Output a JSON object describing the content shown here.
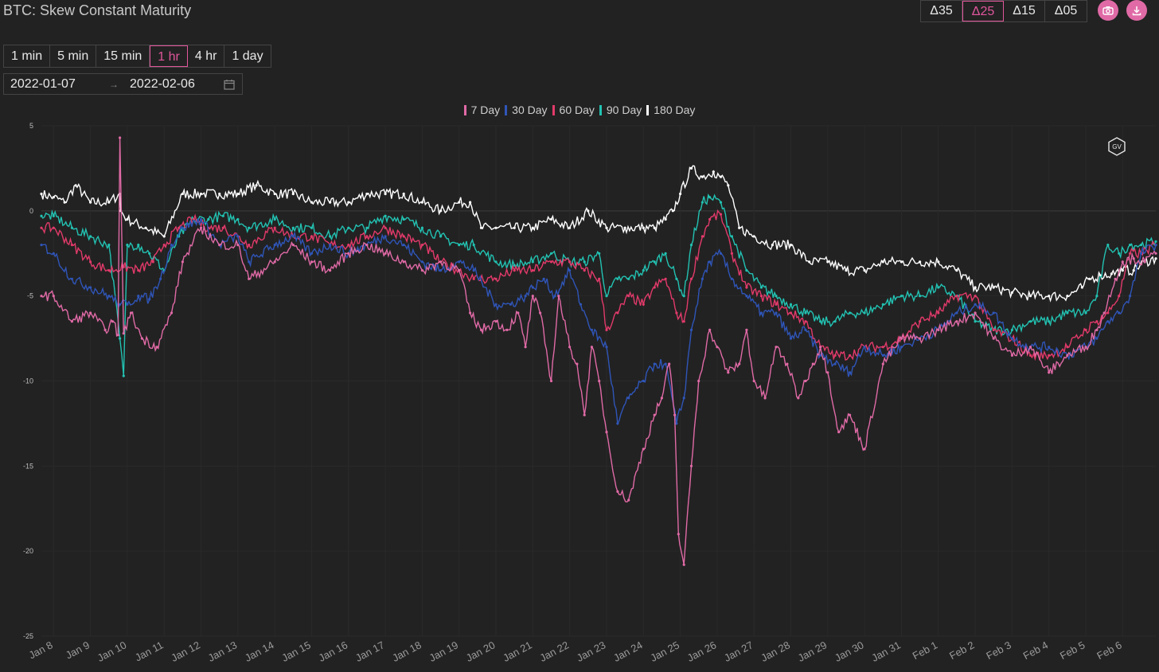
{
  "title": "BTC: Skew Constant Maturity",
  "delta_buttons": [
    "Δ35",
    "Δ25",
    "Δ15",
    "Δ05"
  ],
  "delta_active": "Δ25",
  "interval_buttons": [
    "1 min",
    "5 min",
    "15 min",
    "1 hr",
    "4 hr",
    "1 day"
  ],
  "interval_active": "1 hr",
  "date_range": {
    "start": "2022-01-07",
    "separator": "→",
    "end": "2022-02-06"
  },
  "icons": {
    "camera": "camera-icon",
    "download": "download-icon",
    "calendar": "calendar-icon",
    "logo": "gv-logo-icon"
  },
  "logo_text": "GV",
  "chart_data": {
    "type": "line",
    "title": "",
    "xlabel": "",
    "ylabel": "",
    "ylim": [
      -25,
      5
    ],
    "y_ticks": [
      5,
      0,
      -5,
      -10,
      -15,
      -20,
      -25
    ],
    "x_tick_labels": [
      "Jan 8",
      "Jan 9",
      "Jan 10",
      "Jan 11",
      "Jan 12",
      "Jan 13",
      "Jan 14",
      "Jan 15",
      "Jan 16",
      "Jan 17",
      "Jan 18",
      "Jan 19",
      "Jan 20",
      "Jan 21",
      "Jan 22",
      "Jan 23",
      "Jan 24",
      "Jan 25",
      "Jan 26",
      "Jan 27",
      "Jan 28",
      "Jan 29",
      "Jan 30",
      "Jan 31",
      "Feb 1",
      "Feb 2",
      "Feb 3",
      "Feb 4",
      "Feb 5",
      "Feb 6"
    ],
    "x_tick_values": [
      1,
      2,
      3,
      4,
      5,
      6,
      7,
      8,
      9,
      10,
      11,
      12,
      13,
      14,
      15,
      16,
      17,
      18,
      19,
      20,
      21,
      22,
      23,
      24,
      25,
      26,
      27,
      28,
      29,
      30
    ],
    "xlim": [
      0.67,
      30.9
    ],
    "legend_position": "top-center",
    "grid": true,
    "series": [
      {
        "name": "7 Day",
        "color": "#e06aa6",
        "x": [
          0.67,
          1.0,
          1.5,
          2.0,
          2.4,
          2.6,
          2.75,
          2.8,
          2.9,
          3.1,
          3.4,
          3.8,
          4.2,
          4.5,
          5.0,
          5.5,
          6.0,
          6.3,
          7.0,
          7.5,
          8.0,
          8.5,
          9.0,
          9.5,
          10.0,
          10.5,
          11.0,
          11.5,
          12.0,
          12.3,
          12.6,
          13.0,
          13.3,
          13.6,
          13.8,
          14.0,
          14.2,
          14.5,
          14.7,
          15.0,
          15.2,
          15.4,
          15.6,
          15.8,
          16.0,
          16.3,
          16.6,
          17.0,
          17.3,
          17.5,
          17.7,
          17.85,
          17.95,
          18.1,
          18.3,
          18.5,
          18.8,
          19.0,
          19.3,
          19.6,
          19.8,
          20.0,
          20.3,
          20.6,
          20.9,
          21.2,
          21.4,
          21.6,
          21.8,
          22.0,
          22.3,
          22.6,
          23.0,
          23.5,
          24.0,
          24.5,
          25.0,
          25.5,
          26.0,
          26.5,
          27.0,
          27.5,
          28.0,
          28.5,
          29.0,
          29.3,
          29.5,
          29.8,
          30.0,
          30.3,
          30.6,
          30.9
        ],
        "y": [
          -5,
          -5,
          -6.5,
          -6,
          -7,
          -6.5,
          -7.3,
          4.3,
          -7.2,
          -6,
          -7.5,
          -8,
          -6,
          -3,
          -1,
          -2,
          -2,
          -4,
          -3,
          -2,
          -3,
          -3.5,
          -2.5,
          -2,
          -2.5,
          -3,
          -3.5,
          -3,
          -3.5,
          -6,
          -7,
          -6.5,
          -7,
          -6,
          -8,
          -5,
          -6,
          -10,
          -5,
          -8,
          -9,
          -12,
          -8,
          -10,
          -13,
          -16.5,
          -17,
          -14,
          -12,
          -11,
          -9,
          -12,
          -19,
          -20.8,
          -15,
          -10,
          -7,
          -8,
          -9.5,
          -9,
          -7,
          -10,
          -11,
          -8,
          -9,
          -11,
          -10,
          -9,
          -8,
          -9.5,
          -13,
          -12,
          -14,
          -9,
          -7.5,
          -7.5,
          -7,
          -6.5,
          -6,
          -7.5,
          -8.5,
          -8,
          -9.5,
          -8.5,
          -8,
          -7,
          -6,
          -4,
          -3,
          -2.8,
          -3,
          -2.5
        ]
      },
      {
        "name": "30 Day",
        "color": "#2f55b8",
        "x": [
          0.67,
          1.0,
          1.5,
          2.0,
          2.5,
          2.8,
          3.0,
          3.3,
          3.6,
          3.9,
          4.2,
          4.5,
          5.0,
          5.5,
          6.0,
          6.3,
          7.0,
          7.5,
          8.0,
          8.5,
          9.0,
          9.5,
          10.0,
          10.5,
          11.0,
          11.5,
          12.0,
          12.4,
          13.0,
          13.4,
          13.8,
          14.0,
          14.3,
          14.6,
          15.0,
          15.3,
          15.6,
          16.0,
          16.3,
          16.6,
          17.0,
          17.3,
          17.6,
          17.9,
          18.1,
          18.3,
          18.6,
          18.8,
          19.1,
          19.4,
          19.8,
          20.2,
          20.6,
          21.0,
          21.4,
          21.8,
          22.2,
          22.6,
          23.0,
          23.5,
          24.0,
          24.5,
          25.0,
          25.5,
          26.0,
          26.5,
          27.0,
          27.5,
          28.0,
          28.5,
          29.0,
          29.3,
          29.6,
          29.9,
          30.2,
          30.5,
          30.9
        ],
        "y": [
          -2,
          -2.5,
          -4,
          -4.5,
          -5,
          -5.5,
          -5.5,
          -5,
          -5.2,
          -4,
          -2,
          -1,
          -0.5,
          -2,
          -1.5,
          -3,
          -2,
          -1.5,
          -2.5,
          -2,
          -2.5,
          -2,
          -1.5,
          -2,
          -3,
          -3.5,
          -3,
          -3.5,
          -5.5,
          -5.5,
          -5,
          -4.5,
          -4,
          -5,
          -3.5,
          -5.5,
          -7,
          -8,
          -12.5,
          -11,
          -10,
          -9,
          -9,
          -12.5,
          -11,
          -7,
          -4,
          -3,
          -2.5,
          -4,
          -5,
          -6,
          -6,
          -7.5,
          -7,
          -8.5,
          -9,
          -9.5,
          -8,
          -8.5,
          -8,
          -7.5,
          -7,
          -6,
          -5.5,
          -6,
          -7.5,
          -8,
          -8,
          -8.5,
          -8,
          -7.5,
          -6.5,
          -6,
          -5,
          -2.5,
          -2
        ]
      },
      {
        "name": "60 Day",
        "color": "#e23a6a",
        "x": [
          0.67,
          1.0,
          1.5,
          2.0,
          2.5,
          2.9,
          3.3,
          3.7,
          4.0,
          4.4,
          4.8,
          5.2,
          5.6,
          6.0,
          6.3,
          7.0,
          7.5,
          8.0,
          8.5,
          9.0,
          9.5,
          10.0,
          10.5,
          11.0,
          11.5,
          12.0,
          12.4,
          13.0,
          13.5,
          14.0,
          14.5,
          15.0,
          15.4,
          15.8,
          16.0,
          16.3,
          16.6,
          17.0,
          17.3,
          17.6,
          17.9,
          18.1,
          18.3,
          18.6,
          18.8,
          19.1,
          19.4,
          19.8,
          20.2,
          20.6,
          21.0,
          21.4,
          21.8,
          22.2,
          22.6,
          23.0,
          23.5,
          24.0,
          24.5,
          25.0,
          25.5,
          26.0,
          26.5,
          27.0,
          27.5,
          28.0,
          28.5,
          29.0,
          29.3,
          29.6,
          29.9,
          30.2,
          30.5,
          30.9
        ],
        "y": [
          -1,
          -1,
          -2,
          -3,
          -3.5,
          -3.3,
          -3.5,
          -3,
          -2,
          -1,
          -0.5,
          -1,
          -1,
          -1.5,
          -2,
          -1,
          -1.5,
          -1.5,
          -2,
          -2,
          -1.5,
          -1,
          -1.5,
          -2,
          -3,
          -3.5,
          -4,
          -4,
          -3.5,
          -3.5,
          -3,
          -3,
          -3.5,
          -4,
          -7,
          -6,
          -5,
          -5.5,
          -4.5,
          -4,
          -6,
          -6.5,
          -4,
          -1.5,
          -0.5,
          -0.2,
          -2.5,
          -4.5,
          -5,
          -5.5,
          -6,
          -6.5,
          -8,
          -8.5,
          -8.5,
          -8,
          -8,
          -7.5,
          -6.5,
          -6,
          -5,
          -5,
          -7,
          -7.5,
          -8.5,
          -8.5,
          -8,
          -7,
          -6.5,
          -6,
          -5,
          -2.5,
          -2.5,
          -2
        ]
      },
      {
        "name": "90 Day",
        "color": "#22c2b2",
        "x": [
          0.67,
          1.0,
          1.5,
          2.0,
          2.5,
          2.8,
          2.9,
          3.0,
          3.3,
          3.6,
          4.0,
          4.4,
          4.8,
          5.2,
          5.6,
          6.0,
          6.3,
          7.0,
          7.5,
          8.0,
          8.5,
          9.0,
          9.5,
          10.0,
          10.5,
          11.0,
          11.5,
          12.0,
          12.4,
          13.0,
          13.5,
          14.0,
          14.5,
          15.0,
          15.4,
          15.8,
          16.0,
          16.3,
          16.6,
          17.0,
          17.3,
          17.6,
          17.9,
          18.1,
          18.3,
          18.6,
          18.8,
          19.1,
          19.4,
          19.8,
          20.2,
          20.6,
          21.0,
          21.4,
          21.8,
          22.2,
          22.6,
          23.0,
          23.5,
          24.0,
          24.5,
          25.0,
          25.5,
          26.0,
          26.5,
          27.0,
          27.5,
          28.0,
          28.5,
          29.0,
          29.3,
          29.6,
          29.9,
          30.2,
          30.5,
          30.9
        ],
        "y": [
          -0.3,
          -0.3,
          -1,
          -1.5,
          -2,
          -7.5,
          -9.7,
          -2,
          -2,
          -2.5,
          -3.5,
          -1.5,
          -0.5,
          -0.5,
          -0.3,
          -0.5,
          -1,
          -0.5,
          -1,
          -1,
          -1.5,
          -1,
          -1,
          -0.3,
          -0.5,
          -1,
          -1.5,
          -2,
          -2,
          -3,
          -3.2,
          -3,
          -2.5,
          -3,
          -3,
          -2.5,
          -5,
          -4,
          -4,
          -3.5,
          -3,
          -2.5,
          -4,
          -5,
          -2,
          0.5,
          0.8,
          0.5,
          -1.5,
          -3.5,
          -4.5,
          -5,
          -5.5,
          -6,
          -6.5,
          -6.5,
          -6,
          -6,
          -5.5,
          -5,
          -5,
          -4.5,
          -5,
          -6.5,
          -7,
          -7,
          -6.5,
          -6.5,
          -6,
          -6,
          -5,
          -2,
          -2.5,
          -2,
          -2,
          -1.8
        ]
      },
      {
        "name": "180 Day",
        "color": "#ffffff",
        "x": [
          0.67,
          1.0,
          1.3,
          1.6,
          2.0,
          2.5,
          2.8,
          2.82,
          3.0,
          3.5,
          4.0,
          4.5,
          5.0,
          5.5,
          6.0,
          6.5,
          7.0,
          7.5,
          8.0,
          8.5,
          9.0,
          9.5,
          10.0,
          10.5,
          11.0,
          11.5,
          12.0,
          12.3,
          12.6,
          13.0,
          13.5,
          14.0,
          14.5,
          15.0,
          15.5,
          16.0,
          16.5,
          17.0,
          17.3,
          17.6,
          17.8,
          18.0,
          18.3,
          18.6,
          18.9,
          19.1,
          19.3,
          19.6,
          20.0,
          20.5,
          21.0,
          21.5,
          22.0,
          22.5,
          23.0,
          23.5,
          24.0,
          24.5,
          25.0,
          25.5,
          26.0,
          26.5,
          27.0,
          27.5,
          28.0,
          28.5,
          28.9,
          29.1,
          29.4,
          29.7,
          30.0,
          30.3,
          30.6,
          30.9
        ],
        "y": [
          1,
          0.8,
          0.5,
          1.5,
          0.5,
          0.5,
          1,
          0,
          -0.5,
          -1,
          -1.5,
          1,
          1,
          1,
          1,
          1.5,
          1,
          1,
          0.5,
          0.5,
          0.5,
          1,
          1,
          1,
          0.5,
          0,
          0.5,
          0.5,
          -1,
          -1,
          -1,
          -1,
          -0.5,
          -1,
          0,
          -1,
          -1,
          -1,
          -1,
          -0.5,
          0,
          1,
          2.5,
          2,
          2.3,
          2,
          1.5,
          -1,
          -1.5,
          -2,
          -2,
          -3,
          -3,
          -3.5,
          -3.5,
          -3,
          -3,
          -3,
          -3,
          -3.5,
          -4.5,
          -4.5,
          -4.8,
          -5,
          -5,
          -5,
          -4.5,
          -4,
          -3.8,
          -3.7,
          -3.5,
          -3.5,
          -3,
          -2.8
        ]
      }
    ]
  }
}
